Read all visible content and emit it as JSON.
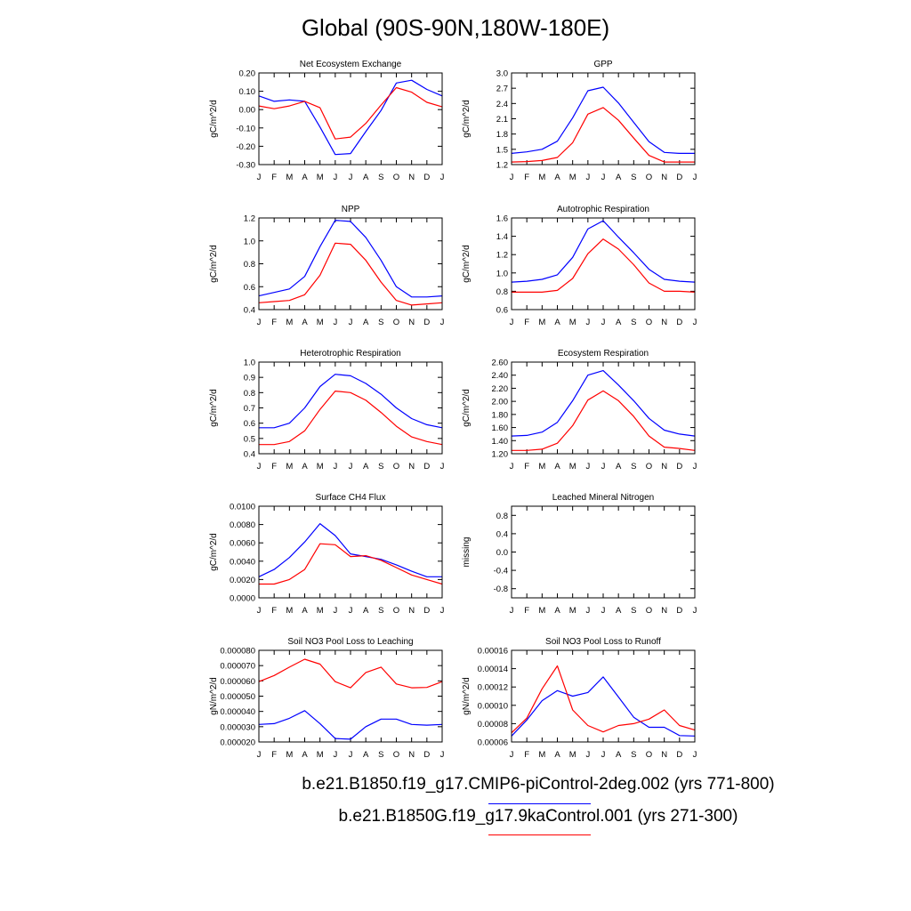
{
  "page": {
    "title": "Global (90S-90N,180W-180E)"
  },
  "colors": {
    "run1": "#0000ff",
    "run2": "#ff0000",
    "axis": "#000000"
  },
  "legend": [
    {
      "label": "b.e21.B1850.f19_g17.CMIP6-piControl-2deg.002 (yrs 771-800)",
      "color": "#0000ff"
    },
    {
      "label": "b.e21.B1850G.f19_g17.9kaControl.001 (yrs 271-300)",
      "color": "#ff0000"
    }
  ],
  "chart_data": [
    {
      "type": "line",
      "title": "Net Ecosystem Exchange",
      "ylabel": "gC/m^2/d",
      "categories": [
        "J",
        "F",
        "M",
        "A",
        "M",
        "J",
        "J",
        "A",
        "S",
        "O",
        "N",
        "D",
        "J"
      ],
      "ylim": [
        -0.3,
        0.2
      ],
      "yticks": [
        "0.20",
        "0.10",
        "0.00",
        "-0.10",
        "-0.20",
        "-0.30"
      ],
      "series": [
        {
          "values": [
            0.075,
            0.045,
            0.053,
            0.045,
            -0.095,
            -0.245,
            -0.24,
            -0.12,
            -0.005,
            0.145,
            0.16,
            0.11,
            0.075
          ]
        },
        {
          "values": [
            0.02,
            0.005,
            0.02,
            0.045,
            0.01,
            -0.16,
            -0.15,
            -0.075,
            0.025,
            0.12,
            0.095,
            0.04,
            0.015
          ]
        }
      ]
    },
    {
      "type": "line",
      "title": "GPP",
      "ylabel": "gC/m^2/d",
      "categories": [
        "J",
        "F",
        "M",
        "A",
        "M",
        "J",
        "J",
        "A",
        "S",
        "O",
        "N",
        "D",
        "J"
      ],
      "ylim": [
        1.2,
        3.0
      ],
      "yticks": [
        "3.0",
        "2.7",
        "2.4",
        "2.1",
        "1.8",
        "1.5",
        "1.2"
      ],
      "series": [
        {
          "values": [
            1.42,
            1.45,
            1.5,
            1.66,
            2.12,
            2.65,
            2.72,
            2.41,
            2.03,
            1.65,
            1.44,
            1.42,
            1.42
          ]
        },
        {
          "values": [
            1.25,
            1.26,
            1.28,
            1.34,
            1.63,
            2.19,
            2.32,
            2.07,
            1.72,
            1.38,
            1.25,
            1.25,
            1.25
          ]
        }
      ]
    },
    {
      "type": "line",
      "title": "NPP",
      "ylabel": "gC/m^2/d",
      "categories": [
        "J",
        "F",
        "M",
        "A",
        "M",
        "J",
        "J",
        "A",
        "S",
        "O",
        "N",
        "D",
        "J"
      ],
      "ylim": [
        0.4,
        1.2
      ],
      "yticks": [
        "1.2",
        "1.0",
        "0.8",
        "0.6",
        "0.4"
      ],
      "series": [
        {
          "values": [
            0.52,
            0.55,
            0.58,
            0.69,
            0.95,
            1.18,
            1.17,
            1.03,
            0.83,
            0.6,
            0.51,
            0.51,
            0.52
          ]
        },
        {
          "values": [
            0.46,
            0.47,
            0.48,
            0.53,
            0.7,
            0.98,
            0.97,
            0.83,
            0.64,
            0.48,
            0.44,
            0.45,
            0.46
          ]
        }
      ]
    },
    {
      "type": "line",
      "title": "Autotrophic Respiration",
      "ylabel": "gC/m^2/d",
      "categories": [
        "J",
        "F",
        "M",
        "A",
        "M",
        "J",
        "J",
        "A",
        "S",
        "O",
        "N",
        "D",
        "J"
      ],
      "ylim": [
        0.6,
        1.6
      ],
      "yticks": [
        "1.6",
        "1.4",
        "1.2",
        "1.0",
        "0.8",
        "0.6"
      ],
      "series": [
        {
          "values": [
            0.9,
            0.91,
            0.93,
            0.98,
            1.17,
            1.48,
            1.57,
            1.39,
            1.22,
            1.04,
            0.93,
            0.91,
            0.9
          ]
        },
        {
          "values": [
            0.79,
            0.79,
            0.79,
            0.81,
            0.94,
            1.21,
            1.37,
            1.26,
            1.09,
            0.89,
            0.8,
            0.8,
            0.79
          ]
        }
      ]
    },
    {
      "type": "line",
      "title": "Heterotrophic Respiration",
      "ylabel": "gC/m^2/d",
      "categories": [
        "J",
        "F",
        "M",
        "A",
        "M",
        "J",
        "J",
        "A",
        "S",
        "O",
        "N",
        "D",
        "J"
      ],
      "ylim": [
        0.4,
        1.0
      ],
      "yticks": [
        "1.0",
        "0.9",
        "0.8",
        "0.7",
        "0.6",
        "0.5",
        "0.4"
      ],
      "series": [
        {
          "values": [
            0.57,
            0.57,
            0.6,
            0.7,
            0.84,
            0.92,
            0.91,
            0.86,
            0.79,
            0.7,
            0.63,
            0.59,
            0.57
          ]
        },
        {
          "values": [
            0.46,
            0.46,
            0.48,
            0.55,
            0.69,
            0.81,
            0.8,
            0.75,
            0.67,
            0.58,
            0.51,
            0.48,
            0.46
          ]
        }
      ]
    },
    {
      "type": "line",
      "title": "Ecosystem Respiration",
      "ylabel": "gC/m^2/d",
      "categories": [
        "J",
        "F",
        "M",
        "A",
        "M",
        "J",
        "J",
        "A",
        "S",
        "O",
        "N",
        "D",
        "J"
      ],
      "ylim": [
        1.2,
        2.6
      ],
      "yticks": [
        "2.60",
        "2.40",
        "2.20",
        "2.00",
        "1.80",
        "1.60",
        "1.40",
        "1.20"
      ],
      "series": [
        {
          "values": [
            1.47,
            1.48,
            1.53,
            1.68,
            2.01,
            2.4,
            2.47,
            2.25,
            2.01,
            1.74,
            1.56,
            1.5,
            1.47
          ]
        },
        {
          "values": [
            1.25,
            1.25,
            1.27,
            1.36,
            1.63,
            2.02,
            2.16,
            2.01,
            1.77,
            1.47,
            1.3,
            1.28,
            1.25
          ]
        }
      ]
    },
    {
      "type": "line",
      "title": "Surface CH4 Flux",
      "ylabel": "gC/m^2/d",
      "categories": [
        "J",
        "F",
        "M",
        "A",
        "M",
        "J",
        "J",
        "A",
        "S",
        "O",
        "N",
        "D",
        "J"
      ],
      "ylim": [
        0.0,
        0.01
      ],
      "yticks": [
        "0.0100",
        "0.0080",
        "0.0060",
        "0.0040",
        "0.0020",
        "0.0000"
      ],
      "series": [
        {
          "values": [
            0.0023,
            0.0031,
            0.0044,
            0.0061,
            0.0081,
            0.0068,
            0.0048,
            0.0045,
            0.0042,
            0.0036,
            0.0029,
            0.0023,
            0.0023
          ]
        },
        {
          "values": [
            0.0015,
            0.0015,
            0.002,
            0.0031,
            0.0059,
            0.0058,
            0.0045,
            0.0046,
            0.0041,
            0.0033,
            0.0025,
            0.002,
            0.0015
          ]
        }
      ]
    },
    {
      "type": "line",
      "title": "Leached Mineral Nitrogen",
      "ylabel": "missing",
      "categories": [
        "J",
        "F",
        "M",
        "A",
        "M",
        "J",
        "J",
        "A",
        "S",
        "O",
        "N",
        "D",
        "J"
      ],
      "ylim": [
        -1.0,
        1.0
      ],
      "yticks": [
        "0.8",
        "0.4",
        "0.0",
        "-0.4",
        "-0.8"
      ],
      "series": []
    },
    {
      "type": "line",
      "title": "Soil NO3 Pool Loss to Leaching",
      "ylabel": "gN/m^2/d",
      "categories": [
        "J",
        "F",
        "M",
        "A",
        "M",
        "J",
        "J",
        "A",
        "S",
        "O",
        "N",
        "D",
        "J"
      ],
      "ylim": [
        2e-05,
        8e-05
      ],
      "yticks": [
        "0.000080",
        "0.000070",
        "0.000060",
        "0.000050",
        "0.000040",
        "0.000030",
        "0.000020"
      ],
      "series": [
        {
          "values": [
            3.15e-05,
            3.2e-05,
            3.55e-05,
            4.05e-05,
            3.2e-05,
            2.23e-05,
            2.18e-05,
            3e-05,
            3.5e-05,
            3.5e-05,
            3.15e-05,
            3.1e-05,
            3.15e-05
          ]
        },
        {
          "values": [
            5.95e-05,
            6.35e-05,
            6.9e-05,
            7.42e-05,
            7.1e-05,
            5.95e-05,
            5.55e-05,
            6.55e-05,
            6.9e-05,
            5.8e-05,
            5.55e-05,
            5.57e-05,
            5.95e-05
          ]
        }
      ]
    },
    {
      "type": "line",
      "title": "Soil NO3 Pool Loss to Runoff",
      "ylabel": "gN/m^2/d",
      "categories": [
        "J",
        "F",
        "M",
        "A",
        "M",
        "J",
        "J",
        "A",
        "S",
        "O",
        "N",
        "D",
        "J"
      ],
      "ylim": [
        6e-05,
        0.00016
      ],
      "yticks": [
        "0.00016",
        "0.00014",
        "0.00012",
        "0.00010",
        "0.00008",
        "0.00006"
      ],
      "series": [
        {
          "values": [
            6.65e-05,
            8.4e-05,
            0.000105,
            0.000116,
            0.00011,
            0.000114,
            0.000131,
            0.000109,
            8.7e-05,
            7.6e-05,
            7.6e-05,
            6.7e-05,
            6.65e-05
          ]
        },
        {
          "values": [
            7e-05,
            8.6e-05,
            0.000118,
            0.000143,
            9.5e-05,
            7.8e-05,
            7.1e-05,
            7.8e-05,
            8e-05,
            8.5e-05,
            9.5e-05,
            7.8e-05,
            7.3e-05
          ]
        }
      ]
    }
  ]
}
